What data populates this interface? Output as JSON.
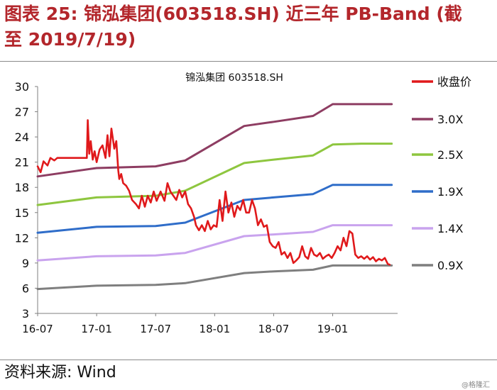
{
  "header": {
    "title_line1": "图表 25: 锦泓集团(603518.SH) 近三年 PB-Band (截",
    "title_line2": "至 2019/7/19)"
  },
  "footer": {
    "source": "资料来源: Wind",
    "watermark": "@格隆汇"
  },
  "colors": {
    "title": "#b3262b",
    "price": "#e0191b",
    "band_3_0": "#8e3d62",
    "band_2_5": "#8ec63f",
    "band_1_9": "#2f6dc9",
    "band_1_4": "#c9a3ee",
    "band_0_9": "#7f7f7f"
  },
  "chart_data": {
    "type": "line",
    "title": "锦泓集团 603518.SH",
    "xlabel": "",
    "ylabel": "",
    "x_ticks": [
      "16-07",
      "17-01",
      "17-07",
      "18-01",
      "18-07",
      "19-01"
    ],
    "x_tick_months": [
      0,
      6,
      12,
      18,
      24,
      30
    ],
    "x_range": [
      0,
      36.6
    ],
    "y_ticks": [
      3,
      6,
      9,
      12,
      15,
      18,
      21,
      24,
      27,
      30
    ],
    "ylim": [
      3,
      30
    ],
    "grid": false,
    "legend_position": "right",
    "x_unit": "months since 2016-07",
    "series": [
      {
        "name": "收盘价",
        "color_key": "price",
        "x": [
          0,
          0.3,
          0.6,
          1.0,
          1.3,
          1.7,
          2.0,
          2.5,
          3,
          4,
          5,
          5.1,
          5.25,
          5.4,
          5.6,
          5.8,
          6,
          6.3,
          6.6,
          6.9,
          7.1,
          7.3,
          7.5,
          7.8,
          8,
          8.2,
          8.3,
          8.5,
          8.7,
          9,
          9.3,
          9.6,
          10,
          10.3,
          10.6,
          10.9,
          11.2,
          11.5,
          11.8,
          12.1,
          12.5,
          12.9,
          13.2,
          13.5,
          13.8,
          14.1,
          14.4,
          14.7,
          15,
          15.3,
          15.6,
          15.9,
          16.1,
          16.4,
          16.7,
          17,
          17.3,
          17.6,
          17.9,
          18.2,
          18.5,
          18.8,
          19.1,
          19.4,
          19.7,
          20,
          20.3,
          20.6,
          20.9,
          21.2,
          21.5,
          21.8,
          22.1,
          22.4,
          22.7,
          23,
          23.3,
          23.6,
          23.9,
          24.2,
          24.5,
          24.8,
          25.1,
          25.4,
          25.7,
          26,
          26.3,
          26.6,
          26.9,
          27.2,
          27.5,
          27.8,
          28.1,
          28.4,
          28.7,
          29,
          29.3,
          29.6,
          29.9,
          30.2,
          30.5,
          30.8,
          31.1,
          31.4,
          31.7,
          32,
          32.3,
          32.6,
          32.9,
          33.2,
          33.5,
          33.8,
          34.1,
          34.4,
          34.7,
          35,
          35.3,
          35.6,
          35.8
        ],
        "values": [
          20.5,
          19.8,
          21.1,
          20.6,
          21.5,
          21.2,
          21.5,
          21.5,
          21.5,
          21.5,
          21.5,
          26.0,
          22.0,
          23.5,
          21.3,
          22.3,
          21.0,
          22.5,
          23.0,
          21.5,
          24.2,
          21.7,
          25.0,
          22.6,
          23.5,
          20.0,
          19.0,
          19.6,
          18.5,
          18.2,
          17.6,
          16.5,
          16.0,
          15.5,
          17.0,
          15.7,
          17.0,
          16.2,
          17.5,
          16.4,
          17.5,
          16.4,
          18.5,
          17.5,
          17.0,
          16.5,
          17.7,
          16.8,
          17.5,
          16.0,
          15.5,
          14.5,
          13.5,
          12.9,
          13.5,
          12.8,
          14.0,
          13.0,
          13.5,
          13.3,
          16.5,
          14.0,
          17.5,
          15.0,
          16.2,
          14.5,
          15.8,
          15.3,
          16.5,
          15.0,
          15.0,
          16.5,
          15.5,
          13.5,
          14.2,
          13.3,
          13.5,
          11.5,
          11.0,
          10.8,
          11.5,
          10.0,
          10.3,
          9.6,
          10.2,
          9.0,
          9.3,
          9.7,
          11.0,
          9.8,
          9.5,
          10.8,
          10.0,
          9.8,
          10.2,
          9.5,
          9.8,
          10.0,
          9.6,
          10.2,
          11.0,
          10.5,
          12.0,
          11.0,
          12.8,
          12.5,
          10.0,
          9.6,
          9.8,
          9.5,
          9.8,
          9.4,
          9.7,
          9.2,
          9.5,
          9.3,
          9.6,
          8.9,
          8.8
        ]
      },
      {
        "name": "3.0X",
        "color_key": "band_3_0",
        "x": [
          0,
          6,
          12,
          15,
          21,
          24,
          28,
          30,
          33,
          36
        ],
        "values": [
          19.3,
          20.3,
          20.5,
          21.2,
          25.3,
          25.8,
          26.5,
          27.9,
          27.9,
          27.9
        ]
      },
      {
        "name": "2.5X",
        "color_key": "band_2_5",
        "x": [
          0,
          6,
          12,
          15,
          21,
          24,
          28,
          30,
          33,
          36
        ],
        "values": [
          15.9,
          16.8,
          17.0,
          17.6,
          20.9,
          21.3,
          21.8,
          23.1,
          23.2,
          23.2
        ]
      },
      {
        "name": "1.9X",
        "color_key": "band_1_9",
        "x": [
          0,
          6,
          12,
          15,
          21,
          24,
          28,
          30,
          33,
          36
        ],
        "values": [
          12.6,
          13.3,
          13.4,
          13.8,
          16.5,
          16.8,
          17.2,
          18.3,
          18.3,
          18.3
        ]
      },
      {
        "name": "1.4X",
        "color_key": "band_1_4",
        "x": [
          0,
          6,
          12,
          15,
          21,
          24,
          28,
          30,
          33,
          36
        ],
        "values": [
          9.3,
          9.8,
          9.9,
          10.2,
          12.2,
          12.4,
          12.7,
          13.5,
          13.5,
          13.5
        ]
      },
      {
        "name": "0.9X",
        "color_key": "band_0_9",
        "x": [
          0,
          6,
          12,
          15,
          21,
          24,
          28,
          30,
          33,
          36
        ],
        "values": [
          5.9,
          6.3,
          6.4,
          6.6,
          7.8,
          8.0,
          8.2,
          8.7,
          8.7,
          8.7
        ]
      }
    ]
  }
}
